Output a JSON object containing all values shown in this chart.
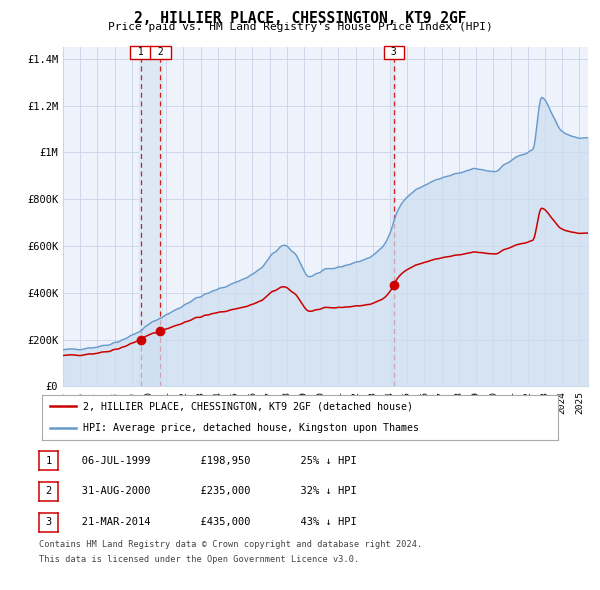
{
  "title": "2, HILLIER PLACE, CHESSINGTON, KT9 2GF",
  "subtitle": "Price paid vs. HM Land Registry's House Price Index (HPI)",
  "footnote1": "Contains HM Land Registry data © Crown copyright and database right 2024.",
  "footnote2": "This data is licensed under the Open Government Licence v3.0.",
  "legend_red": "2, HILLIER PLACE, CHESSINGTON, KT9 2GF (detached house)",
  "legend_blue": "HPI: Average price, detached house, Kingston upon Thames",
  "transactions": [
    {
      "num": 1,
      "date": "06-JUL-1999",
      "price": 198950,
      "price_str": "£198,950",
      "pct": "25%",
      "dir": "↓",
      "decimal_date": 1999.51
    },
    {
      "num": 2,
      "date": "31-AUG-2000",
      "price": 235000,
      "price_str": "£235,000",
      "pct": "32%",
      "dir": "↓",
      "decimal_date": 2000.66
    },
    {
      "num": 3,
      "date": "21-MAR-2014",
      "price": 435000,
      "price_str": "£435,000",
      "pct": "43%",
      "dir": "↓",
      "decimal_date": 2014.22
    }
  ],
  "ylim": [
    0,
    1450000
  ],
  "xlim_start": 1995.0,
  "xlim_end": 2025.5,
  "background_color": "#ffffff",
  "plot_bg_color": "#eef2fa",
  "grid_color": "#c8d4e8",
  "red_color": "#cc0000",
  "blue_color": "#6699cc",
  "blue_fill_color": "#ccddf0",
  "highlight_color": "#dde8f5",
  "dashed_line_color": "#cc2222",
  "hpi_base_years": [
    1995.0,
    1996.0,
    1997.0,
    1998.0,
    1999.0,
    1999.5,
    2000.0,
    2000.7,
    2001.5,
    2002.5,
    2003.5,
    2004.5,
    2005.5,
    2006.5,
    2007.3,
    2007.8,
    2008.5,
    2009.3,
    2010.0,
    2011.0,
    2012.0,
    2013.0,
    2013.7,
    2014.5,
    2015.0,
    2016.0,
    2017.0,
    2018.0,
    2019.0,
    2020.0,
    2020.8,
    2021.5,
    2022.3,
    2022.8,
    2023.3,
    2024.0,
    2025.3
  ],
  "hpi_base_vals": [
    155000,
    162000,
    170000,
    188000,
    218000,
    238000,
    265000,
    295000,
    325000,
    368000,
    400000,
    430000,
    460000,
    505000,
    575000,
    600000,
    565000,
    470000,
    490000,
    510000,
    530000,
    560000,
    610000,
    760000,
    810000,
    860000,
    890000,
    910000,
    930000,
    920000,
    955000,
    985000,
    1010000,
    1240000,
    1180000,
    1090000,
    1060000
  ]
}
